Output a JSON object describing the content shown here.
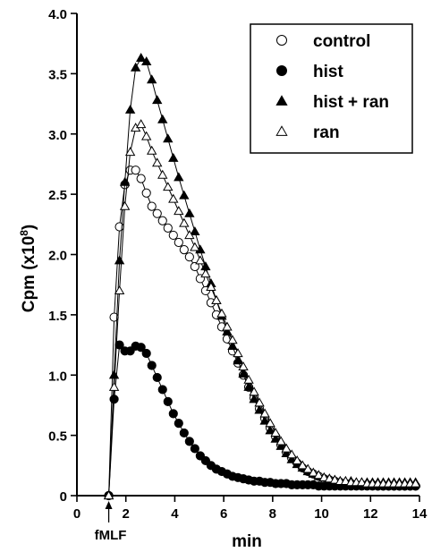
{
  "chart_data": {
    "type": "line",
    "xlabel": "min",
    "ylabel": "Cpm (x10^8)",
    "ylabel_base": "Cpm (x10",
    "ylabel_exp": "8",
    "ylabel_close": ")",
    "xlim": [
      0,
      14
    ],
    "ylim": [
      0,
      4.0
    ],
    "x_ticks": [
      0,
      2,
      4,
      6,
      8,
      10,
      12,
      14
    ],
    "x_tick_labels": [
      "0",
      "2",
      "4",
      "6",
      "8",
      "10",
      "12",
      "14"
    ],
    "y_ticks": [
      0,
      0.5,
      1.0,
      1.5,
      2.0,
      2.5,
      3.0,
      3.5,
      4.0
    ],
    "y_tick_labels": [
      "0",
      "0.5",
      "1.0",
      "1.5",
      "2.0",
      "2.5",
      "3.0",
      "3.5",
      "4.0"
    ],
    "grid": false,
    "legend_position": "top-right",
    "annotation": {
      "text": "fMLF",
      "x": 1.3
    },
    "series": [
      {
        "name": "control",
        "marker": "circle-open",
        "x": [
          1.3,
          1.52,
          1.74,
          1.96,
          2.18,
          2.4,
          2.62,
          2.84,
          3.06,
          3.28,
          3.5,
          3.72,
          3.94,
          4.16,
          4.38,
          4.6,
          4.82,
          5.04,
          5.26,
          5.48,
          5.7,
          5.92,
          6.14,
          6.36,
          6.58,
          6.8,
          7.02,
          7.24,
          7.46,
          7.68,
          7.9,
          8.12,
          8.34,
          8.56,
          8.78,
          9.0,
          9.22,
          9.44,
          9.66,
          9.88,
          10.1,
          10.32,
          10.54,
          10.76,
          10.98,
          11.2,
          11.42,
          11.64,
          11.86,
          12.08,
          12.3,
          12.52,
          12.74,
          12.96,
          13.18,
          13.4,
          13.62,
          13.84
        ],
        "values": [
          0.0,
          1.48,
          2.23,
          2.58,
          2.7,
          2.7,
          2.63,
          2.51,
          2.4,
          2.34,
          2.28,
          2.22,
          2.16,
          2.1,
          2.04,
          1.98,
          1.9,
          1.8,
          1.7,
          1.6,
          1.5,
          1.4,
          1.3,
          1.2,
          1.1,
          1.0,
          0.9,
          0.81,
          0.72,
          0.64,
          0.56,
          0.49,
          0.42,
          0.36,
          0.31,
          0.27,
          0.23,
          0.2,
          0.18,
          0.16,
          0.14,
          0.13,
          0.12,
          0.11,
          0.1,
          0.1,
          0.09,
          0.09,
          0.09,
          0.09,
          0.08,
          0.08,
          0.08,
          0.08,
          0.08,
          0.08,
          0.08,
          0.08
        ]
      },
      {
        "name": "hist",
        "marker": "circle-filled",
        "x": [
          1.3,
          1.52,
          1.74,
          1.96,
          2.18,
          2.4,
          2.62,
          2.84,
          3.06,
          3.28,
          3.5,
          3.72,
          3.94,
          4.16,
          4.38,
          4.6,
          4.82,
          5.04,
          5.26,
          5.48,
          5.7,
          5.92,
          6.14,
          6.36,
          6.58,
          6.8,
          7.02,
          7.24,
          7.46,
          7.68,
          7.9,
          8.12,
          8.34,
          8.56,
          8.78,
          9.0,
          9.22,
          9.44,
          9.66,
          9.88,
          10.1,
          10.32,
          10.54,
          10.76,
          10.98,
          11.2,
          11.42,
          11.64,
          11.86,
          12.08,
          12.3,
          12.52,
          12.74,
          12.96,
          13.18,
          13.4,
          13.62,
          13.84
        ],
        "values": [
          0.0,
          0.8,
          1.25,
          1.2,
          1.2,
          1.24,
          1.23,
          1.18,
          1.08,
          0.98,
          0.88,
          0.78,
          0.68,
          0.6,
          0.52,
          0.45,
          0.39,
          0.33,
          0.29,
          0.25,
          0.22,
          0.2,
          0.18,
          0.16,
          0.15,
          0.14,
          0.13,
          0.12,
          0.12,
          0.11,
          0.11,
          0.1,
          0.1,
          0.1,
          0.09,
          0.09,
          0.09,
          0.09,
          0.09,
          0.08,
          0.08,
          0.08,
          0.08,
          0.08,
          0.08,
          0.08,
          0.08,
          0.08,
          0.08,
          0.08,
          0.08,
          0.08,
          0.08,
          0.08,
          0.08,
          0.08,
          0.08,
          0.08
        ]
      },
      {
        "name": "hist + ran",
        "marker": "triangle-filled",
        "x": [
          1.3,
          1.52,
          1.74,
          1.96,
          2.18,
          2.4,
          2.62,
          2.84,
          3.06,
          3.28,
          3.5,
          3.72,
          3.94,
          4.16,
          4.38,
          4.6,
          4.82,
          5.04,
          5.26,
          5.48,
          5.7,
          5.92,
          6.14,
          6.36,
          6.58,
          6.8,
          7.02,
          7.24,
          7.46,
          7.68,
          7.9,
          8.12,
          8.34,
          8.56,
          8.78,
          9.0,
          9.22,
          9.44,
          9.66,
          9.88,
          10.1,
          10.32,
          10.54,
          10.76,
          10.98,
          11.2,
          11.42,
          11.64,
          11.86,
          12.08,
          12.3,
          12.52,
          12.74,
          12.96,
          13.18,
          13.4,
          13.62,
          13.84
        ],
        "values": [
          0.0,
          1.0,
          1.95,
          2.6,
          3.2,
          3.55,
          3.63,
          3.6,
          3.45,
          3.28,
          3.12,
          2.96,
          2.8,
          2.64,
          2.49,
          2.34,
          2.19,
          2.04,
          1.9,
          1.76,
          1.62,
          1.49,
          1.36,
          1.24,
          1.12,
          1.01,
          0.9,
          0.8,
          0.71,
          0.62,
          0.54,
          0.47,
          0.41,
          0.35,
          0.3,
          0.26,
          0.23,
          0.2,
          0.18,
          0.16,
          0.15,
          0.14,
          0.13,
          0.12,
          0.12,
          0.12,
          0.11,
          0.11,
          0.11,
          0.11,
          0.11,
          0.11,
          0.11,
          0.11,
          0.11,
          0.11,
          0.11,
          0.11
        ]
      },
      {
        "name": "ran",
        "marker": "triangle-open",
        "x": [
          1.3,
          1.52,
          1.74,
          1.96,
          2.18,
          2.4,
          2.62,
          2.84,
          3.06,
          3.28,
          3.5,
          3.72,
          3.94,
          4.16,
          4.38,
          4.6,
          4.82,
          5.04,
          5.26,
          5.48,
          5.7,
          5.92,
          6.14,
          6.36,
          6.58,
          6.8,
          7.02,
          7.24,
          7.46,
          7.68,
          7.9,
          8.12,
          8.34,
          8.56,
          8.78,
          9.0,
          9.22,
          9.44,
          9.66,
          9.88,
          10.1,
          10.32,
          10.54,
          10.76,
          10.98,
          11.2,
          11.42,
          11.64,
          11.86,
          12.08,
          12.3,
          12.52,
          12.74,
          12.96,
          13.18,
          13.4,
          13.62,
          13.84
        ],
        "values": [
          0.0,
          0.9,
          1.7,
          2.4,
          2.85,
          3.05,
          3.08,
          2.98,
          2.86,
          2.76,
          2.66,
          2.56,
          2.46,
          2.36,
          2.26,
          2.16,
          2.06,
          1.95,
          1.84,
          1.73,
          1.62,
          1.51,
          1.4,
          1.29,
          1.18,
          1.07,
          0.96,
          0.86,
          0.77,
          0.68,
          0.6,
          0.52,
          0.45,
          0.39,
          0.34,
          0.29,
          0.25,
          0.22,
          0.19,
          0.17,
          0.15,
          0.14,
          0.13,
          0.12,
          0.12,
          0.11,
          0.11,
          0.11,
          0.1,
          0.1,
          0.1,
          0.1,
          0.1,
          0.1,
          0.1,
          0.1,
          0.1,
          0.1
        ]
      }
    ]
  }
}
